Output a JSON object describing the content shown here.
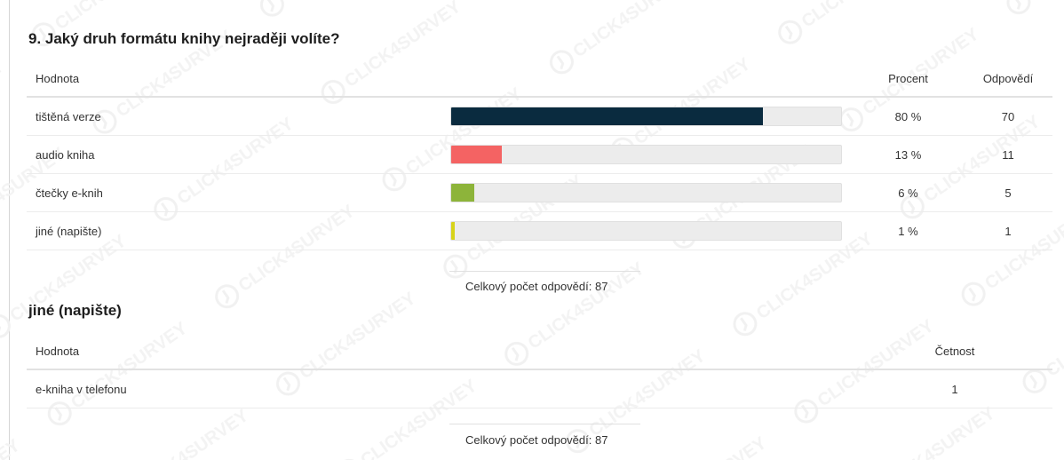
{
  "question": {
    "title": "9. Jaký druh formátu knihy nejraději volíte?",
    "headers": {
      "value": "Hodnota",
      "percent": "Procent",
      "answers": "Odpovědí"
    },
    "rows": [
      {
        "label": "tištěná verze",
        "percent_text": "80 %",
        "count": "70",
        "fraction": 0.8,
        "color": "#0a2b3f"
      },
      {
        "label": "audio kniha",
        "percent_text": "13 %",
        "count": "11",
        "fraction": 0.13,
        "color": "#f46363"
      },
      {
        "label": "čtečky e-knih",
        "percent_text": "6 %",
        "count": "5",
        "fraction": 0.06,
        "color": "#8db43a"
      },
      {
        "label": "jiné (napište)",
        "percent_text": "1 %",
        "count": "1",
        "fraction": 0.01,
        "color": "#d7d31a"
      }
    ],
    "total": "Celkový počet odpovědí: 87"
  },
  "other": {
    "title": "jiné (napište)",
    "headers": {
      "value": "Hodnota",
      "frequency": "Četnost"
    },
    "rows": [
      {
        "label": "e-kniha v telefonu",
        "frequency": "1"
      }
    ],
    "total": "Celkový počet odpovědí: 87"
  },
  "watermark_text": "CLICK4SURVEY"
}
